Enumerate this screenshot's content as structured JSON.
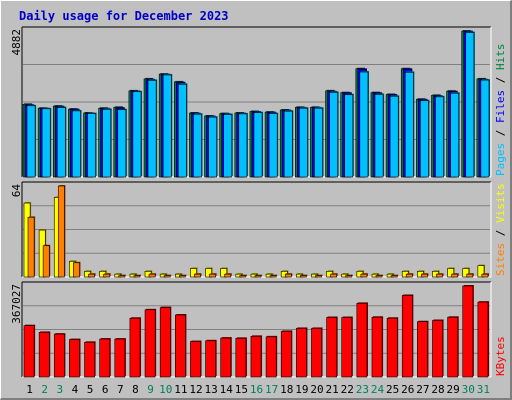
{
  "chart_data": {
    "type": "bar",
    "title": "Daily usage for December 2023",
    "categories": [
      "1",
      "2",
      "3",
      "4",
      "5",
      "6",
      "7",
      "8",
      "9",
      "10",
      "11",
      "12",
      "13",
      "14",
      "15",
      "16",
      "17",
      "18",
      "19",
      "20",
      "21",
      "22",
      "23",
      "24",
      "25",
      "26",
      "27",
      "28",
      "29",
      "30",
      "31"
    ],
    "weekend_days": [
      "2",
      "3",
      "9",
      "10",
      "16",
      "17",
      "23",
      "24",
      "30",
      "31"
    ],
    "panels": [
      {
        "name": "hits_files_pages",
        "ymax_label": "4882",
        "ylim": [
          0,
          4882
        ],
        "legend": [
          {
            "label": "Pages",
            "color": "#00c0ff"
          },
          {
            "label": "Files",
            "color": "#0000ff"
          },
          {
            "label": "Hits",
            "color": "#008040"
          }
        ],
        "series": [
          {
            "name": "Hits",
            "color": "#008040",
            "values": [
              2430,
              2300,
              2370,
              2270,
              2140,
              2300,
              2330,
              2880,
              3280,
              3440,
              3180,
              2140,
              2040,
              2120,
              2140,
              2190,
              2170,
              2240,
              2330,
              2330,
              2880,
              2820,
              3620,
              2820,
              2760,
              3620,
              2600,
              2730,
              2870,
              4880,
              3280
            ]
          },
          {
            "name": "Files",
            "color": "#0000ff",
            "values": [
              2400,
              2280,
              2350,
              2250,
              2120,
              2280,
              2300,
              2860,
              3250,
              3420,
              3150,
              2120,
              2020,
              2100,
              2120,
              2170,
              2150,
              2220,
              2310,
              2310,
              2850,
              2800,
              3600,
              2800,
              2740,
              3600,
              2580,
              2700,
              2850,
              4860,
              3250
            ]
          },
          {
            "name": "Pages",
            "color": "#00c0ff",
            "values": [
              2380,
              2280,
              2320,
              2210,
              2120,
              2260,
              2250,
              2850,
              3230,
              3410,
              3100,
              2100,
              2000,
              2090,
              2110,
              2150,
              2120,
              2200,
              2300,
              2300,
              2830,
              2750,
              3510,
              2760,
              2700,
              3500,
              2550,
              2680,
              2800,
              4830,
              3240
            ]
          }
        ]
      },
      {
        "name": "visits_sites",
        "ymax_label": "64",
        "ylim": [
          0,
          64
        ],
        "legend": [
          {
            "label": "Sites",
            "color": "#ff8000"
          },
          {
            "label": "Visits",
            "color": "#ffff00"
          }
        ],
        "series": [
          {
            "name": "Visits",
            "color": "#ffff00",
            "values": [
              52,
              33,
              56,
              11,
              4,
              4,
              2,
              2,
              4,
              2,
              2,
              6,
              6,
              6,
              2,
              2,
              2,
              4,
              2,
              2,
              4,
              2,
              4,
              2,
              2,
              4,
              4,
              4,
              6,
              6,
              8
            ]
          },
          {
            "name": "Sites",
            "color": "#ff8000",
            "values": [
              42,
              22,
              64,
              10,
              2,
              2,
              1,
              1,
              2,
              1,
              1,
              2,
              2,
              2,
              1,
              1,
              1,
              2,
              1,
              1,
              2,
              1,
              2,
              1,
              1,
              2,
              2,
              2,
              2,
              2,
              2
            ]
          }
        ]
      },
      {
        "name": "kbytes",
        "ymax_label": "367027",
        "ylim": [
          0,
          367027
        ],
        "legend": [
          {
            "label": "KBytes",
            "color": "#ff0000"
          }
        ],
        "series": [
          {
            "name": "KBytes",
            "color": "#ff0000",
            "values": [
              207000,
              180000,
              173000,
              151000,
              140000,
              153000,
              153000,
              237000,
              271000,
              280000,
              250000,
              143000,
              146000,
              157000,
              156000,
              164000,
              162000,
              184000,
              196000,
              196000,
              240000,
              240000,
              297000,
              241000,
              237000,
              329000,
              223000,
              228000,
              241000,
              367000,
              302000
            ]
          }
        ]
      }
    ]
  }
}
